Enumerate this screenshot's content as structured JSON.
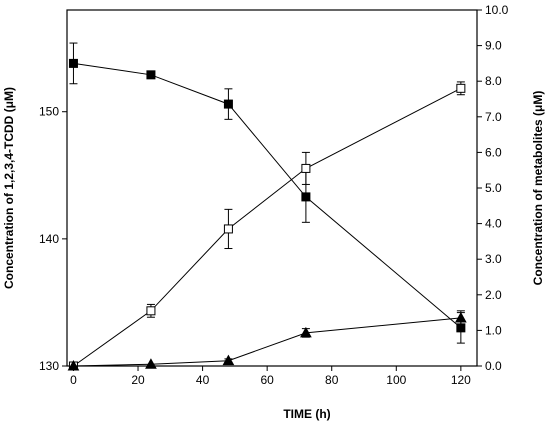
{
  "chart_data": {
    "type": "line",
    "xlabel": "TIME (h)",
    "ylabel_left": "Concentration of 1,2,3,4-TCDD (μM)",
    "ylabel_right": "Concentration of metabolites (μM)",
    "xlim": [
      -2,
      125
    ],
    "ylim_left": [
      130,
      158
    ],
    "ylim_right": [
      0,
      10
    ],
    "x_ticks": [
      0,
      20,
      40,
      60,
      80,
      100,
      120
    ],
    "y_left_ticks": [
      130,
      140,
      150
    ],
    "y_right_ticks": [
      "0.0",
      "1.0",
      "2.0",
      "3.0",
      "4.0",
      "5.0",
      "6.0",
      "7.0",
      "8.0",
      "9.0",
      "10.0"
    ],
    "series": [
      {
        "marker": "filled-square",
        "axis": "left",
        "x": [
          0,
          24,
          48,
          72,
          120
        ],
        "y": [
          153.8,
          152.9,
          150.6,
          143.3,
          133.0
        ],
        "err": [
          1.6,
          0.0,
          1.2,
          2.0,
          1.2
        ]
      },
      {
        "marker": "open-square",
        "axis": "right",
        "x": [
          0,
          24,
          48,
          72,
          120
        ],
        "y": [
          0.0,
          1.55,
          3.85,
          5.55,
          7.8
        ],
        "err": [
          0.0,
          0.18,
          0.55,
          0.45,
          0.18
        ]
      },
      {
        "marker": "filled-triangle",
        "axis": "right",
        "x": [
          0,
          24,
          48,
          72,
          120
        ],
        "y": [
          0.0,
          0.05,
          0.15,
          0.93,
          1.35
        ],
        "err": [
          0.0,
          0.0,
          0.05,
          0.12,
          0.2
        ]
      }
    ],
    "grid": false,
    "legend": "none"
  }
}
